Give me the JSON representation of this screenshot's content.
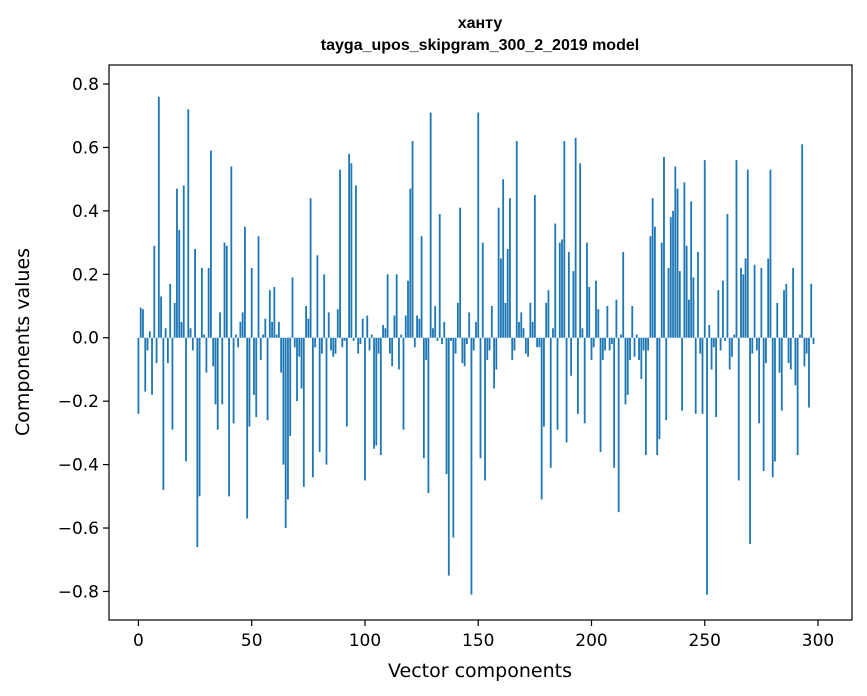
{
  "chart_data": {
    "type": "bar",
    "title": "ханту",
    "subtitle": "tayga_upos_skipgram_300_2_2019 model",
    "xlabel": "Vector components",
    "ylabel": "Components values",
    "xlim": [
      -13,
      315
    ],
    "ylim": [
      -0.89,
      0.86
    ],
    "xticks": [
      0,
      50,
      100,
      150,
      200,
      250,
      300
    ],
    "yticks": [
      -0.8,
      -0.6,
      -0.4,
      -0.2,
      0.0,
      0.2,
      0.4,
      0.6,
      0.8
    ],
    "ytick_labels": [
      "−0.8",
      "−0.6",
      "−0.4",
      "−0.2",
      "0.0",
      "0.2",
      "0.4",
      "0.6",
      "0.8"
    ],
    "bar_color": "#1f77b4",
    "values": [
      -0.24,
      0.095,
      0.09,
      -0.17,
      -0.04,
      0.02,
      -0.18,
      0.29,
      -0.08,
      0.76,
      0.13,
      -0.48,
      0.03,
      -0.08,
      0.17,
      -0.29,
      0.11,
      0.47,
      0.34,
      0.05,
      0.48,
      -0.39,
      0.72,
      0.03,
      -0.04,
      0.28,
      -0.66,
      -0.5,
      0.22,
      0.01,
      -0.11,
      0.22,
      0.59,
      -0.09,
      -0.21,
      -0.29,
      0.08,
      -0.21,
      0.3,
      0.29,
      -0.5,
      0.54,
      -0.27,
      0.01,
      -0.03,
      0.05,
      0.08,
      0.35,
      -0.57,
      -0.28,
      0.22,
      -0.18,
      -0.25,
      0.32,
      -0.07,
      0.01,
      0.06,
      -0.26,
      0.15,
      0.05,
      0.16,
      0.01,
      0.05,
      -0.11,
      -0.4,
      -0.6,
      -0.51,
      -0.31,
      0.19,
      -0.03,
      -0.2,
      -0.06,
      -0.16,
      -0.47,
      0.1,
      0.06,
      0.44,
      -0.44,
      -0.03,
      0.26,
      -0.36,
      -0.05,
      0.2,
      -0.4,
      0.08,
      -0.04,
      -0.06,
      -0.05,
      0.09,
      0.53,
      -0.03,
      -0.01,
      -0.28,
      0.58,
      0.55,
      -0.01,
      0.48,
      -0.05,
      -0.02,
      0.06,
      -0.45,
      0.07,
      -0.04,
      0.01,
      -0.35,
      -0.34,
      -0.05,
      -0.37,
      0.04,
      0.03,
      0.2,
      -0.05,
      -0.09,
      0.07,
      0.2,
      -0.1,
      0.01,
      -0.29,
      0.07,
      0.18,
      0.47,
      0.62,
      -0.03,
      0.07,
      0.06,
      0.32,
      -0.38,
      -0.07,
      -0.49,
      0.71,
      0.03,
      0.1,
      -0.01,
      0.39,
      -0.02,
      0.05,
      -0.43,
      -0.75,
      -0.01,
      -0.63,
      -0.05,
      0.11,
      0.41,
      -0.08,
      -0.09,
      -0.02,
      0.08,
      -0.81,
      -0.04,
      0.05,
      0.71,
      -0.38,
      0.3,
      -0.45,
      -0.07,
      -0.04,
      0.1,
      -0.16,
      -0.1,
      0.41,
      0.25,
      0.5,
      0.11,
      0.28,
      0.44,
      -0.07,
      -0.04,
      0.62,
      0.05,
      0.08,
      0.03,
      -0.05,
      -0.06,
      0.11,
      0.05,
      0.45,
      -0.03,
      -0.03,
      -0.51,
      -0.28,
      0.11,
      0.15,
      -0.41,
      0.03,
      0.36,
      -0.29,
      0.3,
      0.31,
      0.62,
      -0.33,
      0.27,
      -0.12,
      0.21,
      0.63,
      -0.24,
      0.55,
      0.03,
      -0.27,
      0.3,
      0.16,
      -0.07,
      -0.03,
      0.18,
      0.09,
      -0.36,
      -0.07,
      -0.04,
      0.1,
      -0.04,
      -0.02,
      -0.41,
      0.12,
      -0.55,
      0.01,
      0.27,
      -0.21,
      -0.18,
      -0.07,
      0.1,
      -0.06,
      0.01,
      -0.07,
      -0.13,
      -0.04,
      -0.37,
      -0.04,
      0.32,
      0.44,
      0.35,
      -0.37,
      -0.32,
      0.3,
      0.57,
      -0.26,
      0.22,
      0.38,
      0.4,
      0.54,
      0.47,
      0.21,
      -0.23,
      0.49,
      0.29,
      0.12,
      0.43,
      0.19,
      -0.24,
      0.27,
      -0.05,
      -0.24,
      0.56,
      -0.81,
      0.04,
      -0.1,
      -0.03,
      -0.25,
      0.15,
      -0.04,
      0.18,
      -0.01,
      0.39,
      -0.1,
      -0.06,
      0.01,
      0.56,
      -0.45,
      0.22,
      0.2,
      0.25,
      0.53,
      -0.65,
      -0.05,
      0.23,
      -0.04,
      -0.27,
      0.22,
      -0.42,
      -0.08,
      0.25,
      0.53,
      -0.44,
      -0.39,
      0.11,
      -0.11,
      -0.23,
      0.15,
      0.17,
      -0.08,
      -0.1,
      0.22,
      -0.15,
      -0.37,
      0.01,
      0.61,
      -0.09,
      -0.05,
      -0.22,
      0.17,
      -0.02
    ]
  }
}
